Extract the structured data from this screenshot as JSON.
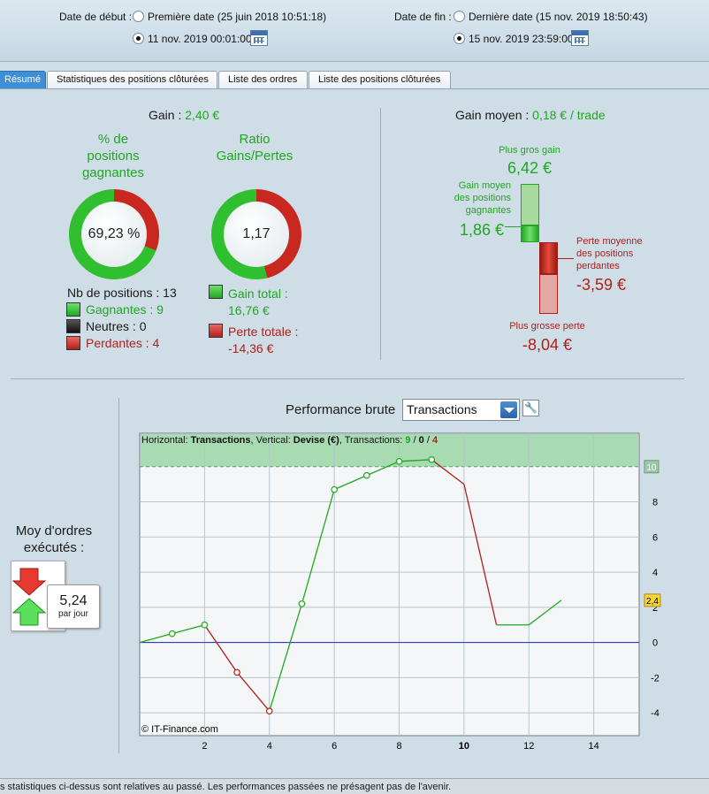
{
  "date_bar": {
    "start_label": "Date de début :",
    "start_opt1": "Première date (25 juin 2018 10:51:18)",
    "start_opt2": "11 nov. 2019 00:01:00",
    "end_label": "Date de fin :",
    "end_opt1": "Dernière date (15 nov. 2019 18:50:43)",
    "end_opt2": "15 nov. 2019 23:59:00"
  },
  "tabs": [
    "Résumé",
    "Statistiques des positions clôturées",
    "Liste des ordres",
    "Liste des positions clôturées"
  ],
  "summary": {
    "gain_label": "Gain :",
    "gain_value": "2,40 €",
    "pct_title_1": "% de",
    "pct_title_2": "positions",
    "pct_title_3": "gagnantes",
    "pct_value": "69,23 %",
    "ratio_title_1": "Ratio",
    "ratio_title_2": "Gains/Pertes",
    "ratio_value": "1,17",
    "nb_positions": "Nb de positions : 13",
    "gagnantes": "Gagnantes : 9",
    "neutres": "Neutres : 0",
    "perdantes": "Perdantes : 4",
    "gain_total_label": "Gain total :",
    "gain_total_value": "16,76 €",
    "perte_totale_label": "Perte totale :",
    "perte_totale_value": "-14,36 €",
    "pct_fraction": 0.6923,
    "ratio_fraction": 0.5386
  },
  "gain_moyen": {
    "label": "Gain moyen :",
    "value": "0,18 € / trade",
    "plus_gros_gain_label": "Plus gros gain",
    "plus_gros_gain_value": "6,42 €",
    "gain_moyen_pos_1": "Gain moyen",
    "gain_moyen_pos_2": "des positions",
    "gain_moyen_pos_3": "gagnantes",
    "gain_moyen_pos_value": "1,86 €",
    "perte_moyenne_1": "Perte moyenne",
    "perte_moyenne_2": "des positions",
    "perte_moyenne_3": "perdantes",
    "perte_moyenne_value": "-3,59 €",
    "plus_grosse_perte_label": "Plus grosse perte",
    "plus_grosse_perte_value": "-8,04 €"
  },
  "orders": {
    "title_1": "Moy d'ordres",
    "title_2": "exécutés :",
    "value": "5,24",
    "unit": "par jour"
  },
  "performance": {
    "label": "Performance brute",
    "select_value": "Transactions",
    "copyright": "© IT-Finance.com",
    "legend_1": "Horizontal: ",
    "legend_2": "Transactions",
    "legend_3": ", Vertical: ",
    "legend_4": "Devise (€)",
    "legend_5": ", Transactions: ",
    "legend_win": "9",
    "legend_sep1": " / ",
    "legend_neutral": "0",
    "legend_sep2": " / ",
    "legend_loss": "4",
    "marker_top": "10",
    "marker_last": "2,4"
  },
  "chart_data": {
    "type": "line",
    "x": [
      0,
      1,
      2,
      3,
      4,
      5,
      6,
      7,
      8,
      9,
      10,
      11,
      12,
      13
    ],
    "y": [
      0,
      0.5,
      1.0,
      -1.7,
      -3.9,
      2.2,
      8.7,
      9.5,
      10.3,
      10.4,
      9.0,
      1.0,
      1.0,
      2.4
    ],
    "point_markers": [
      1,
      2,
      3,
      4,
      5,
      6,
      7,
      8,
      9
    ],
    "xlim": [
      0,
      15.4
    ],
    "ylim": [
      -5.3,
      11.9
    ],
    "x_ticks": [
      2,
      4,
      6,
      8,
      10,
      12,
      14
    ],
    "y_ticks": [
      -4,
      -2,
      0,
      2,
      4,
      6,
      8
    ],
    "colors": {
      "up": "#1fa81f",
      "down": "#b0201b",
      "zero": "#1f2bb0",
      "band": "#a8dbb2"
    },
    "band_from": 10
  },
  "footer": {
    "text": "s statistiques ci-dessus sont relatives au passé. Les performances passées ne présagent pas de l'avenir."
  }
}
